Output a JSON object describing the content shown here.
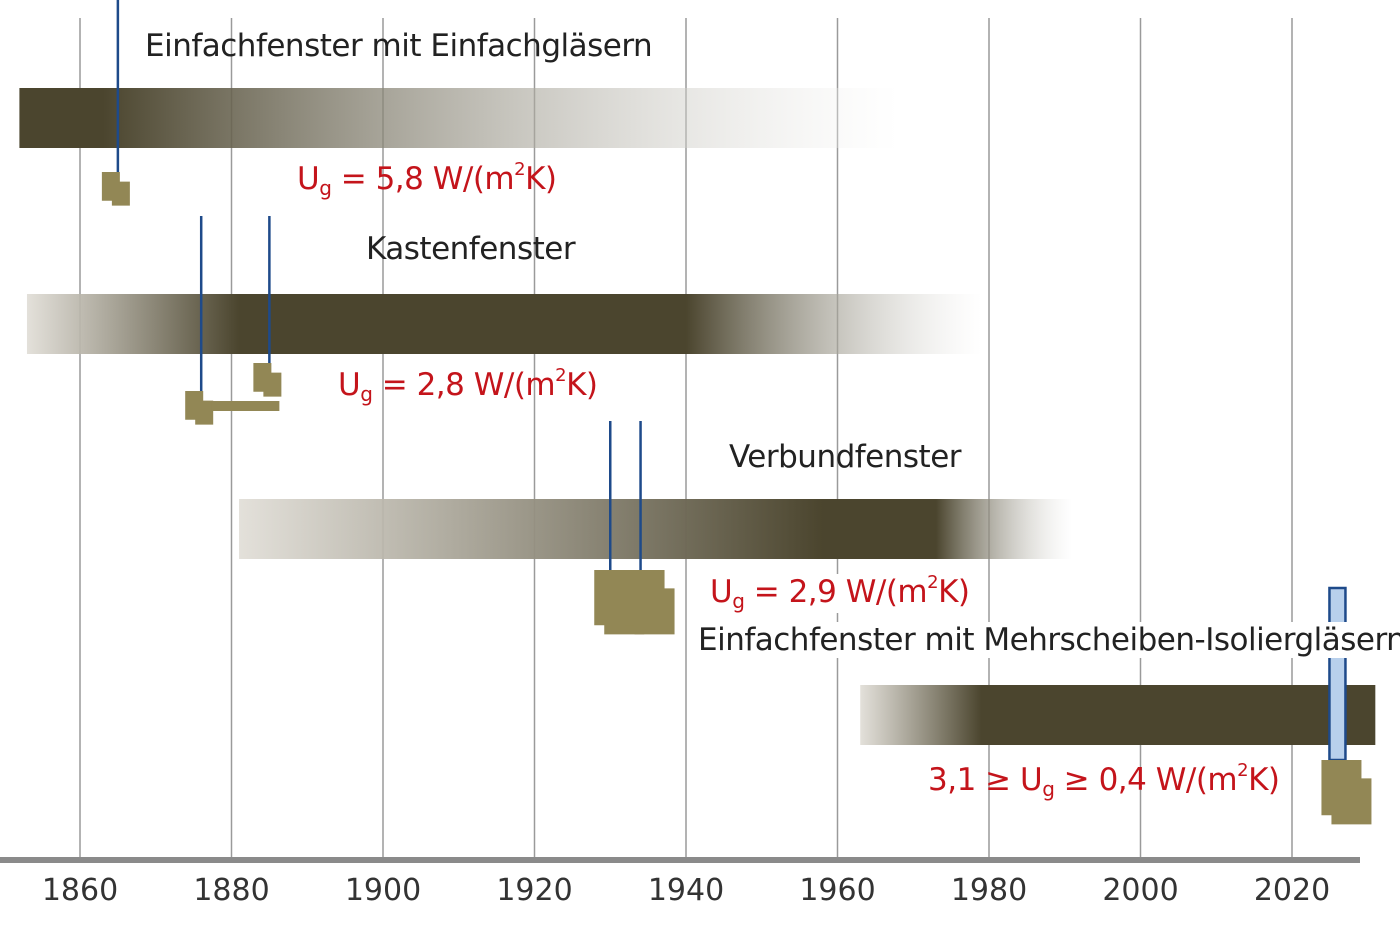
{
  "chart_data": {
    "type": "timeline",
    "xlim": [
      1852,
      2031
    ],
    "ticks": [
      1860,
      1880,
      1900,
      1920,
      1940,
      1960,
      1980,
      2000,
      2020
    ],
    "grid": true,
    "colors": {
      "bar": "#4b452e",
      "fade": "#ffffff",
      "marker": "#928755",
      "pin": "#1e4a8a",
      "pin_light": "#b8d0ec",
      "ug_text": "#c4141b"
    },
    "series": [
      {
        "name": "Einfachfenster mit Einfachgläsern",
        "start": 1852,
        "full_start": 1852,
        "full_end": 1863,
        "end": 1968,
        "ug_prefix": "",
        "ug_main": "U",
        "ug_sub": "g",
        "ug_mid": " = 5,8 W/(m",
        "ug_sup": "2",
        "ug_end": "K)",
        "pins": [
          1865
        ]
      },
      {
        "name": "Kastenfenster",
        "start": 1853,
        "full_start": 1881,
        "full_end": 1940,
        "end": 1979,
        "ug_prefix": "",
        "ug_main": "U",
        "ug_sub": "g",
        "ug_mid": " = 2,8 W/(m",
        "ug_sup": "2",
        "ug_end": "K)",
        "pins": [
          1876,
          1885
        ]
      },
      {
        "name": "Verbundfenster",
        "start": 1881,
        "full_start": 1958,
        "full_end": 1973,
        "end": 1991,
        "ug_prefix": "",
        "ug_main": "U",
        "ug_sub": "g",
        "ug_mid": " = 2,9 W/(m",
        "ug_sup": "2",
        "ug_end": "K)",
        "pins": [
          1930,
          1934
        ]
      },
      {
        "name": "Einfachfenster mit Mehrscheiben-Isoliergläsern",
        "start": 1963,
        "full_start": 1979,
        "full_end": 2031,
        "end": 2031,
        "ug_prefix": "3,1 ≥ ",
        "ug_main": "U",
        "ug_sub": "g",
        "ug_mid": " ≥ 0,4 W/(m",
        "ug_sup": "2",
        "ug_end": "K)",
        "pins": [
          2026
        ]
      }
    ]
  }
}
